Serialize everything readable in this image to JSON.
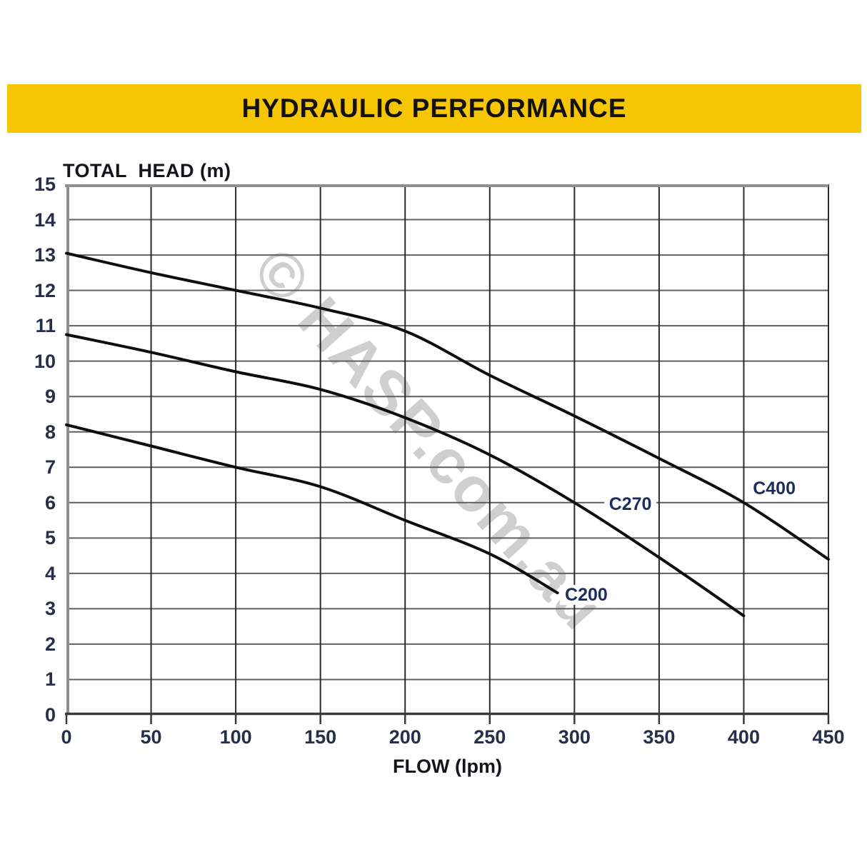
{
  "banner": {
    "title": "HYDRAULIC PERFORMANCE",
    "background": "#F6C503"
  },
  "watermark": {
    "text": "© HASP.com.au",
    "color": "#cfcfcf",
    "angle_deg": 48
  },
  "chart_data": {
    "type": "line",
    "title": "HYDRAULIC PERFORMANCE",
    "xlabel": "FLOW (lpm)",
    "ylabel": "TOTAL  HEAD (m)",
    "xlim": [
      0,
      450
    ],
    "ylim": [
      0,
      15
    ],
    "x_ticks": [
      0,
      50,
      100,
      150,
      200,
      250,
      300,
      350,
      400,
      450
    ],
    "y_ticks": [
      0,
      1,
      2,
      3,
      4,
      5,
      6,
      7,
      8,
      9,
      10,
      11,
      12,
      13,
      14,
      15
    ],
    "grid": "on",
    "legend_position": "inline-curve-labels",
    "curve_color": "#0e0e0e",
    "series": [
      {
        "name": "C400",
        "label_at": [
          418,
          6.4
        ],
        "points": [
          [
            0,
            13.05
          ],
          [
            50,
            12.5
          ],
          [
            100,
            12.0
          ],
          [
            150,
            11.5
          ],
          [
            200,
            10.85
          ],
          [
            250,
            9.6
          ],
          [
            300,
            8.45
          ],
          [
            350,
            7.25
          ],
          [
            400,
            6.0
          ],
          [
            450,
            4.4
          ]
        ]
      },
      {
        "name": "C270",
        "label_at": [
          333,
          5.95
        ],
        "points": [
          [
            0,
            10.75
          ],
          [
            50,
            10.25
          ],
          [
            100,
            9.7
          ],
          [
            150,
            9.2
          ],
          [
            200,
            8.4
          ],
          [
            250,
            7.35
          ],
          [
            300,
            6.0
          ],
          [
            350,
            4.45
          ],
          [
            400,
            2.8
          ]
        ]
      },
      {
        "name": "C200",
        "label_at": [
          307,
          3.4
        ],
        "points": [
          [
            0,
            8.2
          ],
          [
            50,
            7.6
          ],
          [
            100,
            7.0
          ],
          [
            150,
            6.45
          ],
          [
            200,
            5.5
          ],
          [
            250,
            4.55
          ],
          [
            290,
            3.45
          ]
        ]
      }
    ],
    "style": {
      "h_grid_color": "#5f5f5f",
      "v_grid_color": "#2b2b2b",
      "border_color": "#8f8f8f",
      "axis_color": "#3a3a3a"
    }
  }
}
